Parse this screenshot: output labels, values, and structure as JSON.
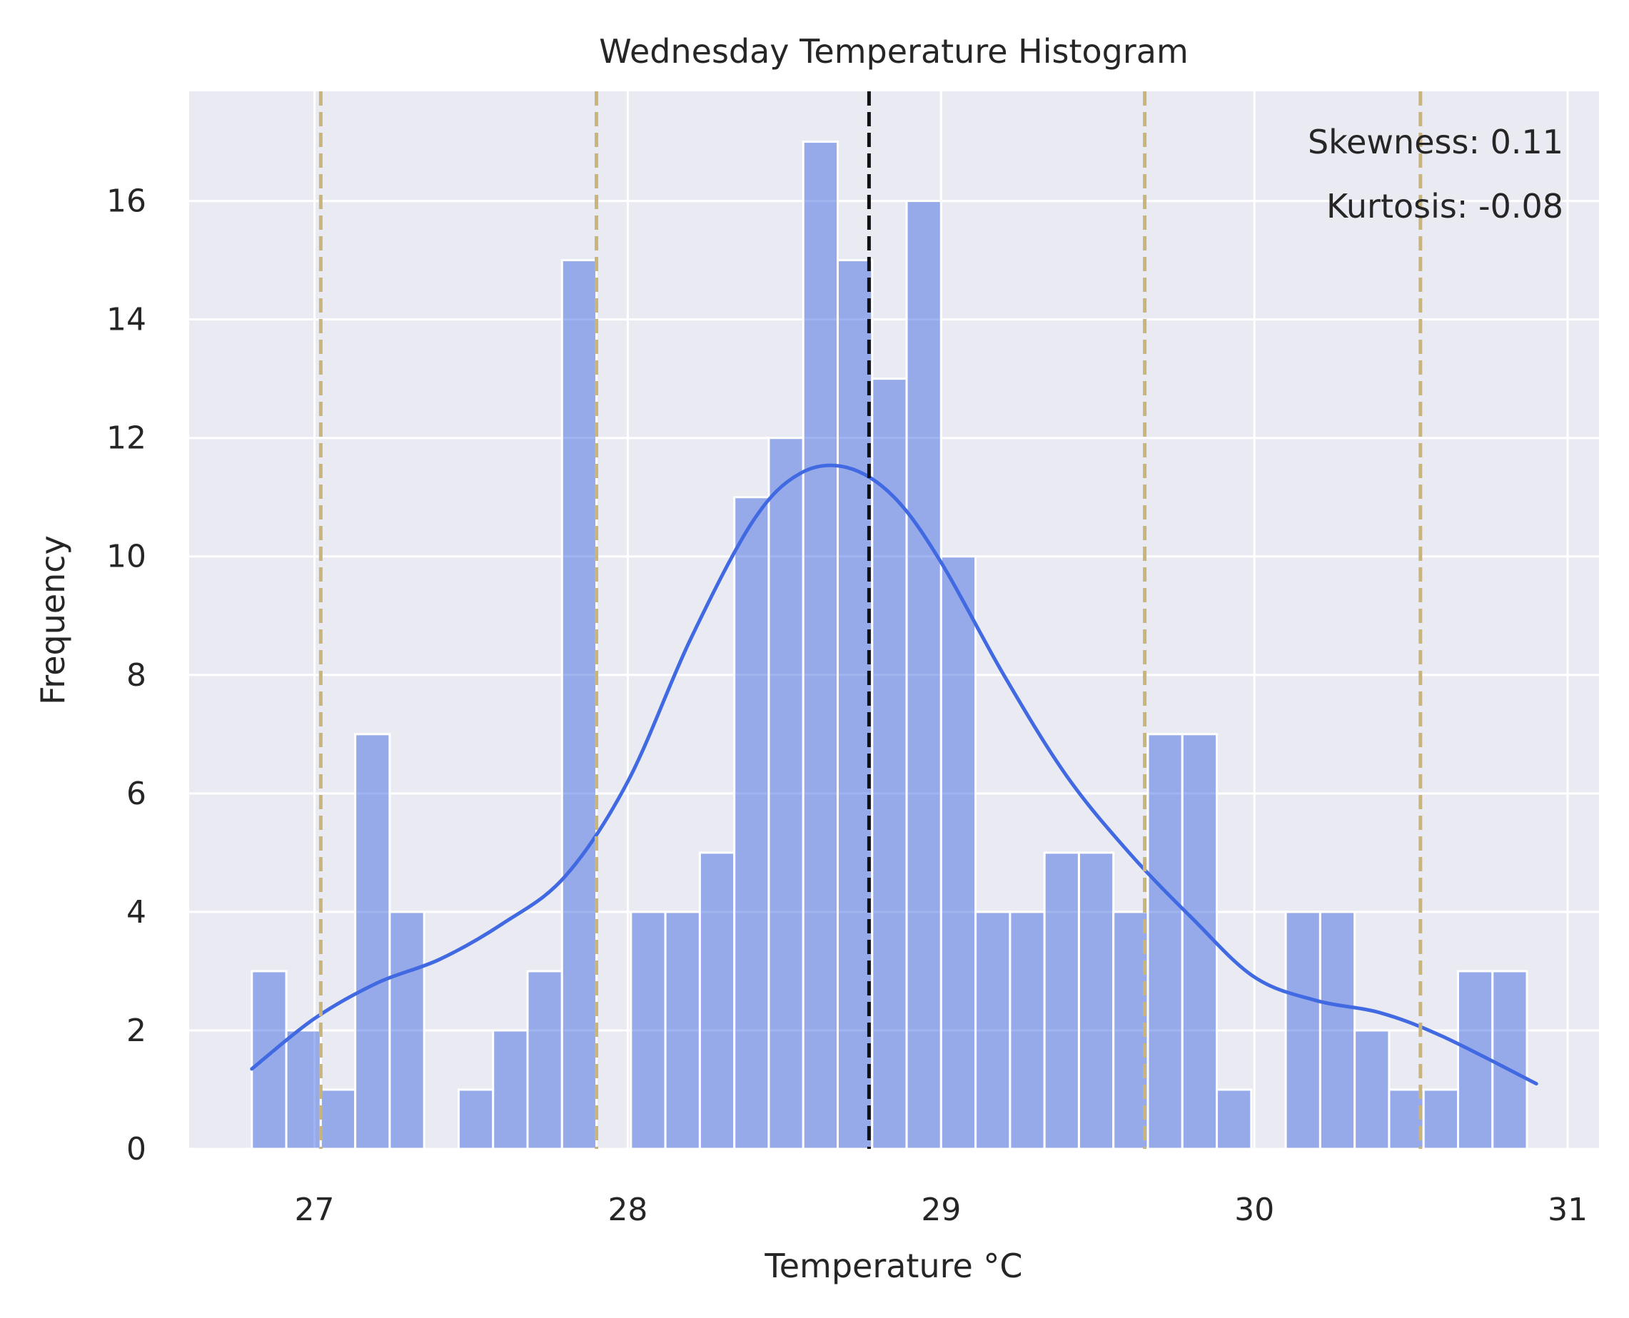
{
  "chart_data": {
    "type": "bar",
    "title": "Wednesday Temperature Histogram",
    "xlabel": "Temperature °C",
    "ylabel": "Frequency",
    "xlim": [
      26.6,
      31.1
    ],
    "ylim": [
      0,
      17.85
    ],
    "x_ticks": [
      27,
      28,
      29,
      30,
      31
    ],
    "y_ticks": [
      0,
      2,
      4,
      6,
      8,
      10,
      12,
      14,
      16
    ],
    "grid": true,
    "bin_start": 26.8,
    "bin_width": 0.11,
    "counts": [
      3,
      2,
      1,
      7,
      4,
      0,
      1,
      2,
      3,
      15,
      0,
      4,
      4,
      5,
      11,
      12,
      17,
      15,
      13,
      16,
      10,
      4,
      4,
      5,
      5,
      4,
      7,
      7,
      1,
      0,
      4,
      4,
      2,
      1,
      1,
      3,
      3
    ],
    "kde": {
      "x": [
        26.8,
        27.0,
        27.2,
        27.4,
        27.6,
        27.8,
        28.0,
        28.2,
        28.4,
        28.55,
        28.7,
        28.85,
        29.0,
        29.2,
        29.4,
        29.6,
        29.8,
        30.0,
        30.2,
        30.4,
        30.6,
        30.9
      ],
      "y": [
        1.35,
        2.2,
        2.8,
        3.2,
        3.8,
        4.6,
        6.2,
        8.6,
        10.6,
        11.4,
        11.5,
        11.0,
        9.9,
        8.0,
        6.3,
        5.0,
        3.9,
        2.9,
        2.5,
        2.3,
        1.9,
        1.1
      ]
    },
    "mean_line": 28.77,
    "std_lines": [
      27.02,
      27.9,
      29.65,
      30.53
    ],
    "annotations": [
      "Skewness: 0.11",
      "Kurtosis: -0.08"
    ],
    "colors": {
      "background": "#EAEAF2",
      "bar_fill": "#4169E1",
      "kde": "#4169E1",
      "mean_line": "#111111",
      "std_lines": "#C9B57A",
      "grid": "#FFFFFF"
    }
  }
}
